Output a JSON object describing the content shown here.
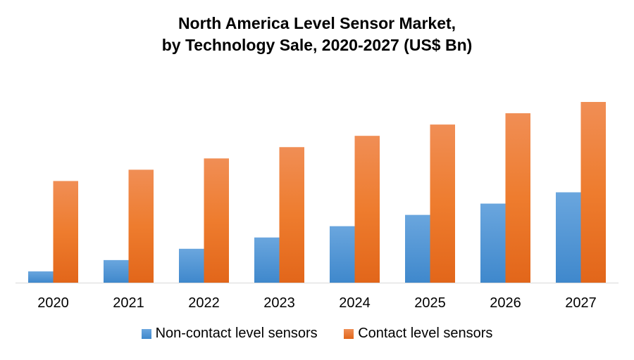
{
  "chart_data": {
    "type": "bar",
    "title": "North America Level Sensor Market,",
    "subtitle": "by Technology Sale, 2020-2027 (US$ Bn)",
    "categories": [
      "2020",
      "2021",
      "2022",
      "2023",
      "2024",
      "2025",
      "2026",
      "2027"
    ],
    "series": [
      {
        "name": "Non-contact level sensors",
        "color": "#5B9BD5",
        "values": [
          1,
          2,
          3,
          4,
          5,
          6,
          7,
          8
        ]
      },
      {
        "name": "Contact level sensors",
        "color": "#ED7D31",
        "values": [
          9,
          10,
          11,
          12,
          13,
          14,
          15,
          16
        ]
      }
    ],
    "xlabel": "",
    "ylabel": "",
    "ylim": [
      0,
      17
    ],
    "grid": false,
    "legend": "bottom",
    "note": "No y-axis values shown; values are relative"
  }
}
